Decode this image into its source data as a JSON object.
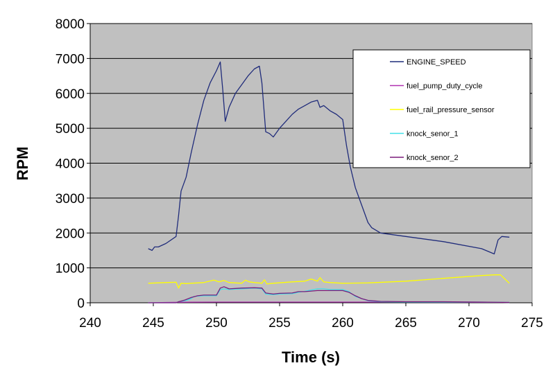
{
  "chart_data": {
    "type": "line",
    "title": "",
    "xlabel": "Time (s)",
    "ylabel": "RPM",
    "xlim": [
      240,
      275
    ],
    "ylim": [
      0,
      8000
    ],
    "x_ticks": [
      240,
      245,
      250,
      255,
      260,
      265,
      270,
      275
    ],
    "y_ticks": [
      0,
      1000,
      2000,
      3000,
      4000,
      5000,
      6000,
      7000,
      8000
    ],
    "grid": "horizontal",
    "legend_position": "top-right",
    "colors": {
      "plot_background": "#c0c0c0",
      "gridline": "#000000"
    },
    "series": [
      {
        "name": "ENGINE_SPEED",
        "color": "#1f2b7a",
        "x": [
          244.6,
          244.9,
          245.1,
          245.4,
          246.0,
          246.8,
          247.0,
          247.2,
          247.6,
          248.0,
          248.5,
          249.0,
          249.5,
          250.0,
          250.3,
          250.5,
          250.7,
          251.0,
          251.5,
          252.0,
          252.5,
          253.0,
          253.4,
          253.6,
          253.9,
          254.2,
          254.5,
          255.0,
          255.5,
          256.0,
          256.5,
          257.0,
          257.5,
          258.0,
          258.2,
          258.5,
          259.0,
          259.5,
          260.0,
          260.3,
          260.6,
          261.0,
          261.5,
          262.0,
          262.3,
          263.0,
          265.0,
          268.0,
          271.0,
          272.0,
          272.3,
          272.6,
          273.2
        ],
        "values": [
          1550,
          1500,
          1600,
          1600,
          1700,
          1900,
          2500,
          3200,
          3600,
          4300,
          5100,
          5800,
          6300,
          6650,
          6900,
          6100,
          5200,
          5600,
          6000,
          6250,
          6500,
          6700,
          6780,
          6300,
          4900,
          4850,
          4750,
          5000,
          5200,
          5400,
          5550,
          5650,
          5750,
          5800,
          5600,
          5650,
          5500,
          5400,
          5250,
          4500,
          3900,
          3300,
          2800,
          2300,
          2150,
          2000,
          1900,
          1750,
          1550,
          1400,
          1800,
          1900,
          1880
        ]
      },
      {
        "name": "fuel_pump_duty_cycle",
        "color": "#b030b0",
        "x": [
          244.6,
          246.0,
          247.0,
          250.0,
          255.0,
          260.0,
          265.0,
          270.0,
          273.2
        ],
        "values": [
          0,
          10,
          15,
          20,
          20,
          20,
          20,
          15,
          10
        ]
      },
      {
        "name": "fuel_rail_pressure_sensor",
        "color": "#ffff00",
        "x": [
          244.6,
          246.0,
          246.8,
          247.0,
          247.2,
          247.6,
          248.0,
          249.0,
          249.8,
          250.2,
          250.6,
          251.0,
          252.0,
          252.3,
          252.6,
          253.0,
          253.6,
          253.8,
          254.0,
          254.5,
          256.0,
          257.0,
          257.5,
          258.0,
          258.2,
          258.5,
          259.0,
          260.0,
          262.0,
          265.0,
          268.0,
          271.0,
          272.0,
          272.5,
          273.2
        ],
        "values": [
          560,
          580,
          590,
          420,
          560,
          550,
          560,
          580,
          650,
          600,
          640,
          580,
          560,
          650,
          600,
          580,
          560,
          660,
          540,
          560,
          600,
          620,
          680,
          620,
          720,
          600,
          580,
          560,
          570,
          620,
          700,
          780,
          800,
          800,
          560
        ]
      },
      {
        "name": "knock_senor_1",
        "color": "#40e0e8",
        "x": [
          244.6,
          246.8,
          247.0,
          247.5,
          247.8,
          248.0,
          248.2,
          249.0,
          250.0,
          250.3,
          250.6,
          251.0,
          252.0,
          253.0,
          253.6,
          253.9,
          254.5,
          255.0,
          256.0,
          256.5,
          257.0,
          258.0,
          258.5,
          259.0,
          260.0,
          260.5,
          261.0,
          261.5,
          262.0,
          263.0,
          265.0,
          268.0,
          271.0,
          273.2
        ],
        "values": [
          0,
          0,
          30,
          60,
          90,
          120,
          180,
          200,
          200,
          380,
          400,
          380,
          400,
          420,
          400,
          250,
          230,
          250,
          260,
          300,
          330,
          400,
          400,
          380,
          380,
          320,
          180,
          120,
          60,
          30,
          20,
          20,
          20,
          10
        ]
      },
      {
        "name": "knock_senor_2",
        "color": "#7a1a7a",
        "x": [
          244.6,
          246.8,
          247.0,
          247.5,
          248.0,
          248.5,
          249.0,
          250.0,
          250.3,
          250.6,
          251.0,
          252.0,
          253.0,
          253.6,
          253.9,
          254.5,
          255.0,
          256.0,
          256.5,
          257.0,
          258.0,
          259.0,
          260.0,
          260.5,
          261.0,
          261.5,
          262.0,
          263.0,
          265.0,
          268.0,
          271.0,
          273.2
        ],
        "values": [
          0,
          0,
          30,
          80,
          150,
          200,
          220,
          220,
          420,
          460,
          400,
          420,
          430,
          420,
          280,
          250,
          270,
          280,
          320,
          320,
          350,
          350,
          350,
          300,
          200,
          120,
          70,
          40,
          30,
          30,
          20,
          10
        ]
      }
    ]
  }
}
